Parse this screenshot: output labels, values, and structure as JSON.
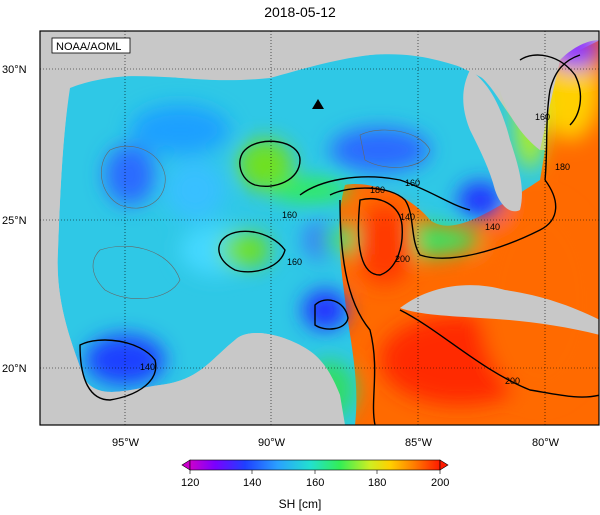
{
  "title": "2018-05-12",
  "badge": "NOAA/AOML",
  "lat_labels": [
    "30°N",
    "25°N",
    "20°N"
  ],
  "lon_labels": [
    "95°W",
    "90°W",
    "85°W",
    "80°W"
  ],
  "contour_labels": [
    "160",
    "180",
    "160",
    "200",
    "140",
    "160",
    "180",
    "160",
    "140",
    "200",
    "140"
  ],
  "colorbar": {
    "ticks": [
      "120",
      "140",
      "160",
      "180",
      "200"
    ],
    "unit": "SH [cm]",
    "colors": [
      "#cc00cc",
      "#7a00ff",
      "#1f3fff",
      "#2aa0ff",
      "#22e0d0",
      "#33ee55",
      "#cfee22",
      "#ffd000",
      "#ff7a00",
      "#ff1a00"
    ]
  },
  "marker": "triangle-marker"
}
